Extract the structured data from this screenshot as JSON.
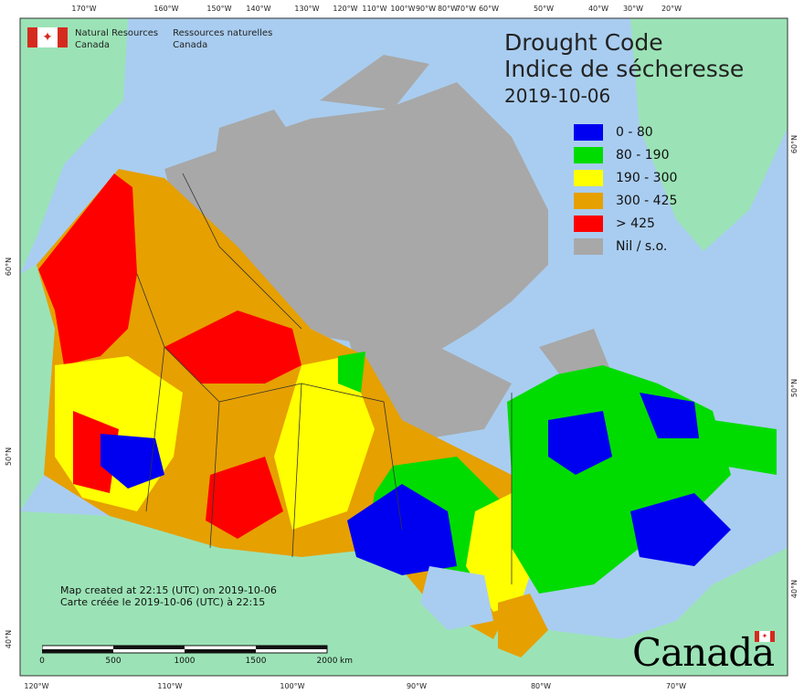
{
  "title": {
    "line1": "Drought Code",
    "line2": "Indice de sécheresse",
    "date": "2019-10-06"
  },
  "agency": {
    "name_en_1": "Natural Resources",
    "name_en_2": "Canada",
    "name_fr_1": "Ressources naturelles",
    "name_fr_2": "Canada",
    "flag_icon": "canada-flag-icon"
  },
  "legend": [
    {
      "label": "0 - 80",
      "color": "#0000f0"
    },
    {
      "label": "80 - 190",
      "color": "#00dc00"
    },
    {
      "label": "190 - 300",
      "color": "#ffff00"
    },
    {
      "label": "300 - 425",
      "color": "#e6a000"
    },
    {
      "label": "> 425",
      "color": "#ff0000"
    },
    {
      "label": "Nil / s.o.",
      "color": "#a8a8a8"
    }
  ],
  "notes": {
    "line1": "Map created at 22:15 (UTC) on 2019-10-06",
    "line2": "Carte créée le 2019-10-06 (UTC) à 22:15"
  },
  "scale_bar": {
    "labels": [
      "0",
      "500",
      "1000",
      "1500",
      "2000"
    ],
    "unit": "km"
  },
  "axes": {
    "top": [
      "170°W",
      "160°W",
      "150°W",
      "140°W",
      "130°W",
      "120°W",
      "110°W",
      "100°W",
      "90°W",
      "80°W",
      "70°W",
      "60°W",
      "50°W",
      "40°W",
      "30°W",
      "20°W"
    ],
    "bottom": [
      "120°W",
      "110°W",
      "100°W",
      "90°W",
      "80°W",
      "70°W"
    ],
    "left": [
      "60°N",
      "50°N",
      "40°N"
    ],
    "right": [
      "60°N",
      "50°N",
      "40°N"
    ]
  },
  "wordmark": "Canada",
  "colors": {
    "ocean": "#a9cdf0",
    "land_other": "#9be3b6",
    "border": "#333333"
  }
}
